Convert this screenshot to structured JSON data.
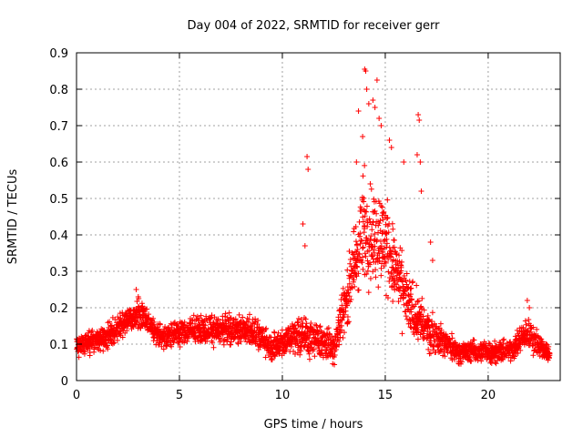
{
  "chart_data": {
    "type": "scatter",
    "title": "Day 004 of 2022, SRMTID for receiver gerr",
    "xlabel": "GPS time / hours",
    "ylabel": "SRMTID / TECUs",
    "xlim": [
      0,
      23.5
    ],
    "ylim": [
      0,
      0.9
    ],
    "xticks": [
      0,
      5,
      10,
      15,
      20
    ],
    "yticks": [
      0,
      0.1,
      0.2,
      0.3,
      0.4,
      0.5,
      0.6,
      0.7,
      0.8,
      0.9
    ],
    "grid": true,
    "marker": "+",
    "series": [
      {
        "name": "SRMTID",
        "color": "#ff0000",
        "trend": [
          {
            "t": 0.0,
            "mean": 0.09,
            "spread": 0.04
          },
          {
            "t": 1.5,
            "mean": 0.12,
            "spread": 0.05
          },
          {
            "t": 2.5,
            "mean": 0.17,
            "spread": 0.05
          },
          {
            "t": 3.2,
            "mean": 0.18,
            "spread": 0.05
          },
          {
            "t": 4.0,
            "mean": 0.12,
            "spread": 0.04
          },
          {
            "t": 6.0,
            "mean": 0.14,
            "spread": 0.05
          },
          {
            "t": 8.5,
            "mean": 0.14,
            "spread": 0.06
          },
          {
            "t": 9.5,
            "mean": 0.09,
            "spread": 0.05
          },
          {
            "t": 10.8,
            "mean": 0.13,
            "spread": 0.08
          },
          {
            "t": 12.5,
            "mean": 0.09,
            "spread": 0.06
          },
          {
            "t": 13.2,
            "mean": 0.25,
            "spread": 0.12
          },
          {
            "t": 14.0,
            "mean": 0.42,
            "spread": 0.22
          },
          {
            "t": 15.0,
            "mean": 0.38,
            "spread": 0.18
          },
          {
            "t": 16.0,
            "mean": 0.22,
            "spread": 0.12
          },
          {
            "t": 17.0,
            "mean": 0.14,
            "spread": 0.08
          },
          {
            "t": 18.5,
            "mean": 0.08,
            "spread": 0.04
          },
          {
            "t": 21.0,
            "mean": 0.08,
            "spread": 0.04
          },
          {
            "t": 21.9,
            "mean": 0.13,
            "spread": 0.06
          },
          {
            "t": 23.0,
            "mean": 0.07,
            "spread": 0.03
          }
        ],
        "highlights": [
          {
            "x": 11.2,
            "y": 0.615
          },
          {
            "x": 11.25,
            "y": 0.58
          },
          {
            "x": 11.0,
            "y": 0.43
          },
          {
            "x": 11.1,
            "y": 0.37
          },
          {
            "x": 14.0,
            "y": 0.855
          },
          {
            "x": 14.05,
            "y": 0.85
          },
          {
            "x": 14.1,
            "y": 0.8
          },
          {
            "x": 14.6,
            "y": 0.825
          },
          {
            "x": 14.4,
            "y": 0.77
          },
          {
            "x": 14.5,
            "y": 0.75
          },
          {
            "x": 14.2,
            "y": 0.76
          },
          {
            "x": 13.7,
            "y": 0.74
          },
          {
            "x": 14.7,
            "y": 0.72
          },
          {
            "x": 14.8,
            "y": 0.7
          },
          {
            "x": 13.9,
            "y": 0.67
          },
          {
            "x": 15.2,
            "y": 0.66
          },
          {
            "x": 15.3,
            "y": 0.64
          },
          {
            "x": 13.6,
            "y": 0.6
          },
          {
            "x": 15.9,
            "y": 0.6
          },
          {
            "x": 16.6,
            "y": 0.73
          },
          {
            "x": 16.65,
            "y": 0.715
          },
          {
            "x": 16.55,
            "y": 0.62
          },
          {
            "x": 16.7,
            "y": 0.6
          },
          {
            "x": 16.75,
            "y": 0.52
          },
          {
            "x": 17.2,
            "y": 0.38
          },
          {
            "x": 17.3,
            "y": 0.33
          },
          {
            "x": 21.9,
            "y": 0.22
          },
          {
            "x": 22.0,
            "y": 0.2
          },
          {
            "x": 2.9,
            "y": 0.25
          },
          {
            "x": 3.0,
            "y": 0.23
          }
        ]
      }
    ]
  }
}
